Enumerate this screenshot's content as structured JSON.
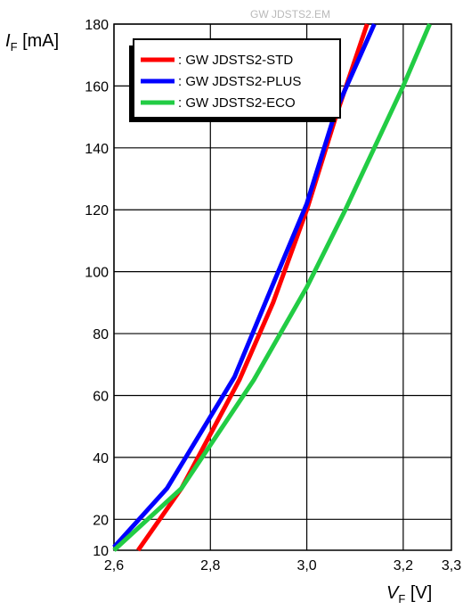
{
  "watermark": "GW JDSTS2.EM",
  "chart_data": {
    "type": "line",
    "xlabel": {
      "main": "V",
      "sub": "F",
      "unit": " [V]"
    },
    "ylabel": {
      "main": "I",
      "sub": "F",
      "unit": " [mA]"
    },
    "xlim": [
      2.6,
      3.3
    ],
    "ylim": [
      10,
      180
    ],
    "x_ticks": [
      2.6,
      2.8,
      3.0,
      3.2,
      3.3
    ],
    "x_tick_labels": [
      "2,6",
      "2,8",
      "3,0",
      "3,2",
      "3,3"
    ],
    "y_ticks": [
      10,
      20,
      40,
      60,
      80,
      100,
      120,
      140,
      160,
      180
    ],
    "y_tick_labels": [
      "10",
      "20",
      "40",
      "60",
      "80",
      "100",
      "120",
      "140",
      "160",
      "180"
    ],
    "x_grid": [
      2.6,
      2.8,
      3.0,
      3.2
    ],
    "y_grid": [
      20,
      40,
      60,
      80,
      100,
      120,
      140,
      160,
      180
    ],
    "grid": true,
    "legend_position": "top-left",
    "series": [
      {
        "name": ": GW JDSTS2-STD",
        "color": "#ff0000",
        "points": [
          [
            2.65,
            10
          ],
          [
            2.74,
            30
          ],
          [
            2.86,
            65
          ],
          [
            2.93,
            90
          ],
          [
            3.0,
            120
          ],
          [
            3.06,
            150
          ],
          [
            3.125,
            180
          ]
        ]
      },
      {
        "name": ": GW JDSTS2-PLUS",
        "color": "#0000ff",
        "points": [
          [
            2.6,
            11
          ],
          [
            2.71,
            30
          ],
          [
            2.85,
            66
          ],
          [
            2.93,
            96
          ],
          [
            3.0,
            122
          ],
          [
            3.06,
            152
          ],
          [
            3.14,
            180
          ]
        ]
      },
      {
        "name": ": GW JDSTS2-ECO",
        "color": "#22cc44",
        "points": [
          [
            2.6,
            10
          ],
          [
            2.74,
            30
          ],
          [
            2.89,
            65
          ],
          [
            3.0,
            95
          ],
          [
            3.08,
            120
          ],
          [
            3.2,
            160
          ],
          [
            3.255,
            180
          ]
        ]
      }
    ]
  }
}
